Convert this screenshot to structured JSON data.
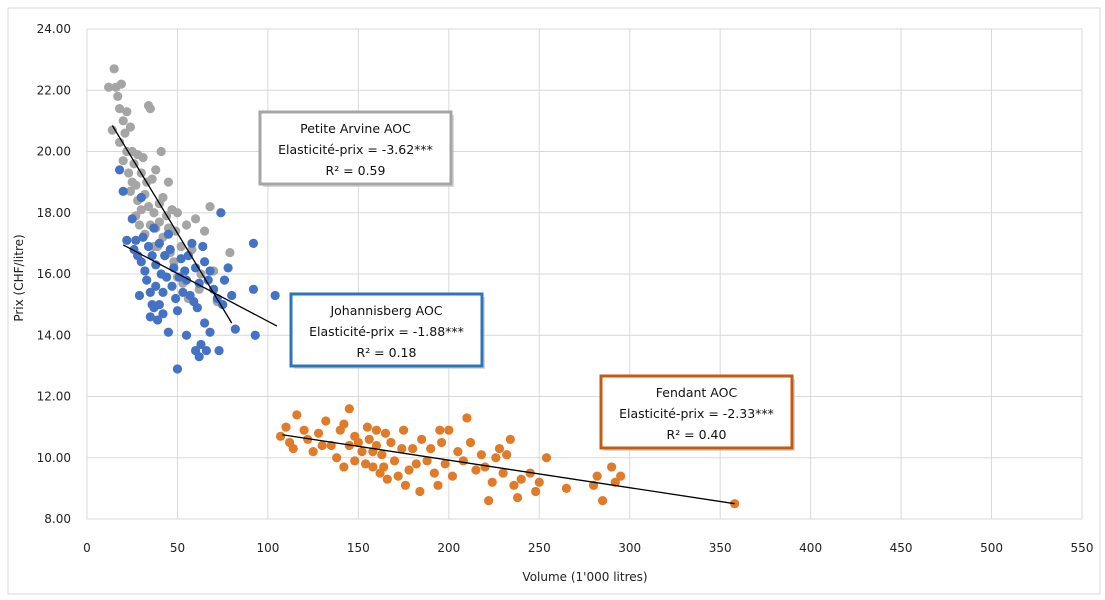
{
  "chart_data": {
    "type": "scatter",
    "xlabel": "Volume (1'000 litres)",
    "ylabel": "Prix (CHF/litre)",
    "xlim": [
      0,
      550
    ],
    "ylim": [
      8,
      24
    ],
    "x_ticks": [
      "0",
      "50",
      "100",
      "150",
      "200",
      "250",
      "300",
      "350",
      "400",
      "450",
      "500",
      "550"
    ],
    "y_ticks": [
      "8.00",
      "10.00",
      "12.00",
      "14.00",
      "16.00",
      "18.00",
      "20.00",
      "22.00",
      "24.00"
    ],
    "grid": true,
    "series": [
      {
        "color": "#4472c4",
        "trendline": {
          "x": [
            20,
            105
          ],
          "y": [
            16.95,
            14.3
          ]
        },
        "points": [
          [
            18,
            19.4
          ],
          [
            20,
            18.7
          ],
          [
            22,
            17.1
          ],
          [
            25,
            17.8
          ],
          [
            26,
            16.8
          ],
          [
            27,
            17.1
          ],
          [
            28,
            16.6
          ],
          [
            29,
            15.3
          ],
          [
            30,
            16.4
          ],
          [
            30,
            18.5
          ],
          [
            31,
            17.2
          ],
          [
            32,
            16.1
          ],
          [
            33,
            15.8
          ],
          [
            34,
            16.9
          ],
          [
            35,
            14.6
          ],
          [
            35,
            15.4
          ],
          [
            36,
            15.0
          ],
          [
            36,
            16.6
          ],
          [
            37,
            17.5
          ],
          [
            37,
            14.9
          ],
          [
            38,
            15.6
          ],
          [
            38,
            16.3
          ],
          [
            39,
            14.5
          ],
          [
            40,
            15.0
          ],
          [
            40,
            17.0
          ],
          [
            41,
            16.0
          ],
          [
            42,
            15.4
          ],
          [
            42,
            14.7
          ],
          [
            43,
            16.6
          ],
          [
            44,
            15.9
          ],
          [
            45,
            17.3
          ],
          [
            45,
            14.1
          ],
          [
            46,
            16.8
          ],
          [
            47,
            15.6
          ],
          [
            48,
            16.2
          ],
          [
            49,
            15.2
          ],
          [
            50,
            12.9
          ],
          [
            50,
            14.8
          ],
          [
            51,
            15.9
          ],
          [
            52,
            16.5
          ],
          [
            53,
            15.4
          ],
          [
            54,
            16.1
          ],
          [
            55,
            14.0
          ],
          [
            55,
            15.8
          ],
          [
            56,
            16.6
          ],
          [
            57,
            15.3
          ],
          [
            58,
            17.0
          ],
          [
            59,
            15.1
          ],
          [
            60,
            13.5
          ],
          [
            60,
            16.2
          ],
          [
            61,
            14.9
          ],
          [
            62,
            13.3
          ],
          [
            62,
            15.7
          ],
          [
            63,
            13.7
          ],
          [
            64,
            16.9
          ],
          [
            65,
            14.4
          ],
          [
            65,
            16.4
          ],
          [
            66,
            13.5
          ],
          [
            67,
            15.8
          ],
          [
            68,
            14.1
          ],
          [
            68,
            16.1
          ],
          [
            70,
            15.5
          ],
          [
            72,
            15.2
          ],
          [
            73,
            13.5
          ],
          [
            74,
            18.0
          ],
          [
            75,
            15.0
          ],
          [
            76,
            15.8
          ],
          [
            78,
            16.2
          ],
          [
            80,
            15.3
          ],
          [
            82,
            14.2
          ],
          [
            92,
            17.0
          ],
          [
            93,
            14.0
          ],
          [
            92,
            15.5
          ],
          [
            104,
            15.3
          ]
        ]
      },
      {
        "color": "#a5a5a5",
        "trendline": {
          "x": [
            14,
            80
          ],
          "y": [
            20.85,
            14.4
          ]
        },
        "points": [
          [
            12,
            22.1
          ],
          [
            14,
            20.7
          ],
          [
            15,
            22.7
          ],
          [
            16,
            22.1
          ],
          [
            17,
            21.8
          ],
          [
            18,
            21.4
          ],
          [
            18,
            20.3
          ],
          [
            19,
            22.2
          ],
          [
            20,
            21.0
          ],
          [
            20,
            19.7
          ],
          [
            21,
            20.6
          ],
          [
            22,
            21.3
          ],
          [
            22,
            20.0
          ],
          [
            23,
            19.3
          ],
          [
            24,
            20.8
          ],
          [
            24,
            18.7
          ],
          [
            25,
            20.0
          ],
          [
            25,
            19.0
          ],
          [
            26,
            19.6
          ],
          [
            27,
            18.9
          ],
          [
            27,
            17.9
          ],
          [
            28,
            19.9
          ],
          [
            28,
            18.4
          ],
          [
            29,
            17.6
          ],
          [
            30,
            19.3
          ],
          [
            30,
            18.1
          ],
          [
            31,
            19.8
          ],
          [
            32,
            18.6
          ],
          [
            32,
            17.3
          ],
          [
            33,
            19.0
          ],
          [
            34,
            18.2
          ],
          [
            34,
            21.5
          ],
          [
            35,
            17.6
          ],
          [
            35,
            21.4
          ],
          [
            36,
            19.1
          ],
          [
            37,
            18.0
          ],
          [
            37,
            16.9
          ],
          [
            38,
            17.5
          ],
          [
            38,
            19.4
          ],
          [
            39,
            16.9
          ],
          [
            40,
            17.7
          ],
          [
            40,
            18.3
          ],
          [
            41,
            20.0
          ],
          [
            42,
            17.2
          ],
          [
            42,
            18.5
          ],
          [
            43,
            16.6
          ],
          [
            44,
            17.9
          ],
          [
            45,
            17.5
          ],
          [
            45,
            19.0
          ],
          [
            46,
            16.7
          ],
          [
            47,
            18.1
          ],
          [
            48,
            16.4
          ],
          [
            49,
            17.4
          ],
          [
            50,
            15.9
          ],
          [
            50,
            18.0
          ],
          [
            52,
            16.9
          ],
          [
            53,
            15.7
          ],
          [
            55,
            17.6
          ],
          [
            56,
            15.2
          ],
          [
            58,
            16.8
          ],
          [
            60,
            17.8
          ],
          [
            62,
            15.5
          ],
          [
            63,
            16.0
          ],
          [
            65,
            17.4
          ],
          [
            68,
            18.2
          ],
          [
            70,
            16.1
          ],
          [
            72,
            15.1
          ],
          [
            79,
            16.7
          ]
        ]
      },
      {
        "color": "#e07b2a",
        "trendline": {
          "x": [
            108,
            358
          ],
          "y": [
            10.75,
            8.5
          ]
        },
        "points": [
          [
            107,
            10.7
          ],
          [
            110,
            11.0
          ],
          [
            112,
            10.5
          ],
          [
            114,
            10.3
          ],
          [
            116,
            11.4
          ],
          [
            120,
            10.9
          ],
          [
            122,
            10.6
          ],
          [
            125,
            10.2
          ],
          [
            128,
            10.8
          ],
          [
            130,
            10.4
          ],
          [
            132,
            11.2
          ],
          [
            135,
            10.4
          ],
          [
            138,
            10.0
          ],
          [
            140,
            10.9
          ],
          [
            142,
            11.1
          ],
          [
            142,
            9.7
          ],
          [
            145,
            10.4
          ],
          [
            145,
            11.6
          ],
          [
            148,
            10.7
          ],
          [
            148,
            9.9
          ],
          [
            150,
            10.5
          ],
          [
            152,
            10.2
          ],
          [
            154,
            9.8
          ],
          [
            155,
            11.0
          ],
          [
            156,
            10.6
          ],
          [
            158,
            10.2
          ],
          [
            158,
            9.7
          ],
          [
            160,
            10.9
          ],
          [
            160,
            10.4
          ],
          [
            162,
            9.5
          ],
          [
            163,
            10.1
          ],
          [
            164,
            9.7
          ],
          [
            165,
            10.8
          ],
          [
            166,
            9.3
          ],
          [
            168,
            10.5
          ],
          [
            170,
            9.9
          ],
          [
            172,
            9.4
          ],
          [
            174,
            10.3
          ],
          [
            175,
            10.9
          ],
          [
            176,
            9.1
          ],
          [
            178,
            9.6
          ],
          [
            180,
            10.3
          ],
          [
            182,
            9.8
          ],
          [
            184,
            8.9
          ],
          [
            185,
            10.6
          ],
          [
            188,
            9.9
          ],
          [
            190,
            10.3
          ],
          [
            192,
            9.5
          ],
          [
            194,
            9.1
          ],
          [
            195,
            10.9
          ],
          [
            196,
            10.5
          ],
          [
            198,
            9.8
          ],
          [
            200,
            10.9
          ],
          [
            202,
            9.4
          ],
          [
            205,
            10.2
          ],
          [
            208,
            9.9
          ],
          [
            210,
            11.3
          ],
          [
            212,
            10.5
          ],
          [
            215,
            9.6
          ],
          [
            218,
            10.1
          ],
          [
            220,
            9.7
          ],
          [
            222,
            8.6
          ],
          [
            224,
            9.2
          ],
          [
            226,
            10.0
          ],
          [
            228,
            10.3
          ],
          [
            230,
            9.5
          ],
          [
            232,
            10.1
          ],
          [
            234,
            10.6
          ],
          [
            236,
            9.1
          ],
          [
            238,
            8.7
          ],
          [
            240,
            9.3
          ],
          [
            245,
            9.5
          ],
          [
            248,
            8.9
          ],
          [
            250,
            9.2
          ],
          [
            254,
            10.0
          ],
          [
            265,
            9.0
          ],
          [
            280,
            9.1
          ],
          [
            282,
            9.4
          ],
          [
            285,
            8.6
          ],
          [
            290,
            9.7
          ],
          [
            292,
            9.2
          ],
          [
            295,
            9.4
          ],
          [
            358,
            8.5
          ]
        ]
      }
    ],
    "annotations": [
      {
        "lines": [
          "Petite Arvine AOC",
          "Elasticité-prix = -3.62***",
          "R² = 0.59"
        ],
        "border_color": "#a5a5a5"
      },
      {
        "lines": [
          "Johannisberg AOC",
          "Elasticité-prix = -1.88***",
          "R² = 0.18"
        ],
        "border_color": "#2e75b6"
      },
      {
        "lines": [
          "Fendant AOC",
          "Elasticité-prix = -2.33***",
          "R² = 0.40"
        ],
        "border_color": "#c55a11"
      }
    ]
  }
}
